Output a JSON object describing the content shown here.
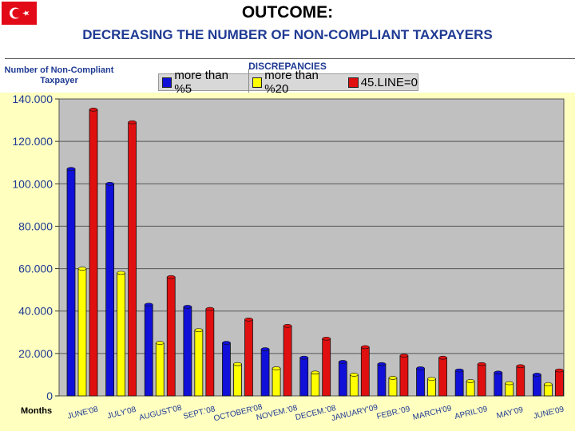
{
  "title": "OUTCOME:",
  "subtitle": "DECREASING THE NUMBER OF NON-COMPLIANT TAXPAYERS",
  "y_axis_label": "Number of Non-Compliant Taxpayer",
  "legend_title": "DISCREPANCIES",
  "x_axis_label": "Months",
  "flag_icon": "turkish-flag-icon",
  "chart_data": {
    "type": "bar",
    "categories": [
      "JUNE'08",
      "JULY'08",
      "AUGUST'08",
      "SEPT.'08",
      "OCTOBER'08",
      "NOVEM.'08",
      "DECEM.'08",
      "JANUARY'09",
      "FEBR.'09",
      "MARCH'09",
      "APRIL'09",
      "MAY'09",
      "JUNE'09"
    ],
    "series": [
      {
        "name": "more than %5",
        "color": "#1010d8",
        "values": [
          107000,
          100000,
          43000,
          42000,
          25000,
          22000,
          18000,
          16000,
          15000,
          13000,
          12000,
          11000,
          10000
        ]
      },
      {
        "name": "more than %20",
        "color": "#ffff00",
        "values": [
          60000,
          58000,
          25000,
          31000,
          15000,
          13000,
          11000,
          10000,
          8500,
          8000,
          7000,
          6000,
          5500
        ]
      },
      {
        "name": "45.LINE=0",
        "color": "#e01010",
        "values": [
          135000,
          129000,
          56000,
          41000,
          36000,
          33000,
          27000,
          23000,
          19000,
          18000,
          15000,
          14000,
          12000
        ]
      }
    ],
    "y_ticks": [
      "0",
      "20.000",
      "40.000",
      "60.000",
      "80.000",
      "100.000",
      "120.000",
      "140.000"
    ],
    "ylim": [
      0,
      140000
    ],
    "grid": true
  }
}
